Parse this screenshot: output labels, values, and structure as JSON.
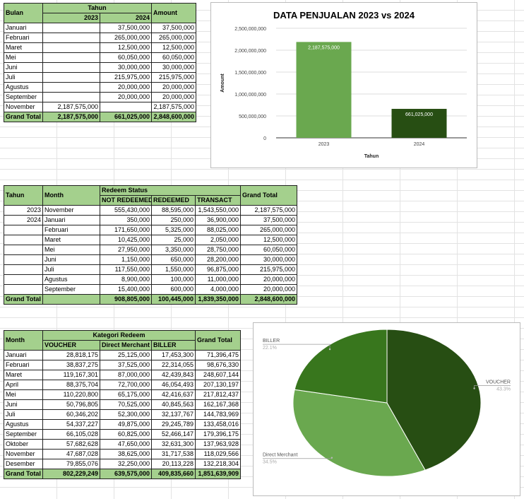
{
  "tables": [
    {
      "row_headers": [
        "Bulan"
      ],
      "group": "Tahun",
      "subheaders": [
        "2023",
        "2024"
      ],
      "total_header": "Amount",
      "rows": [
        [
          "Januari",
          null,
          "37,500,000",
          "37,500,000"
        ],
        [
          "Februari",
          null,
          "265,000,000",
          "265,000,000"
        ],
        [
          "Maret",
          null,
          "12,500,000",
          "12,500,000"
        ],
        [
          "Mei",
          null,
          "60,050,000",
          "60,050,000"
        ],
        [
          "Juni",
          null,
          "30,000,000",
          "30,000,000"
        ],
        [
          "Juli",
          null,
          "215,975,000",
          "215,975,000"
        ],
        [
          "Agustus",
          null,
          "20,000,000",
          "20,000,000"
        ],
        [
          "September",
          null,
          "20,000,000",
          "20,000,000"
        ],
        [
          "November",
          "2,187,575,000",
          null,
          "2,187,575,000"
        ],
        [
          "Grand Total",
          "2,187,575,000",
          "661,025,000",
          "2,848,600,000"
        ]
      ]
    },
    {
      "row_headers": [
        "Tahun",
        "Month"
      ],
      "group": "Redeem Status",
      "subheaders": [
        "NOT REDEEMED",
        "REDEEMED",
        "TRANSACT"
      ],
      "total_header": "Grand Total",
      "rows": [
        [
          "2023",
          "November",
          "555,430,000",
          "88,595,000",
          "1,543,550,000",
          "2,187,575,000"
        ],
        [
          "2024",
          "Januari",
          "350,000",
          "250,000",
          "36,900,000",
          "37,500,000"
        ],
        [
          null,
          "Februari",
          "171,650,000",
          "5,325,000",
          "88,025,000",
          "265,000,000"
        ],
        [
          null,
          "Maret",
          "10,425,000",
          "25,000",
          "2,050,000",
          "12,500,000"
        ],
        [
          null,
          "Mei",
          "27,950,000",
          "3,350,000",
          "28,750,000",
          "60,050,000"
        ],
        [
          null,
          "Juni",
          "1,150,000",
          "650,000",
          "28,200,000",
          "30,000,000"
        ],
        [
          null,
          "Juli",
          "117,550,000",
          "1,550,000",
          "96,875,000",
          "215,975,000"
        ],
        [
          null,
          "Agustus",
          "8,900,000",
          "100,000",
          "11,000,000",
          "20,000,000"
        ],
        [
          null,
          "September",
          "15,400,000",
          "600,000",
          "4,000,000",
          "20,000,000"
        ],
        [
          "Grand Total",
          null,
          "908,805,000",
          "100,445,000",
          "1,839,350,000",
          "2,848,600,000"
        ]
      ]
    },
    {
      "row_headers": [
        "Month"
      ],
      "group": "Kategori Redeem",
      "subheaders": [
        "VOUCHER",
        "Direct Merchant",
        "BILLER"
      ],
      "total_header": "Grand Total",
      "rows": [
        [
          "Januari",
          "28,818,175",
          "25,125,000",
          "17,453,300",
          "71,396,475"
        ],
        [
          "Februari",
          "38,837,275",
          "37,525,000",
          "22,314,055",
          "98,676,330"
        ],
        [
          "Maret",
          "119,167,301",
          "87,000,000",
          "42,439,843",
          "248,607,144"
        ],
        [
          "April",
          "88,375,704",
          "72,700,000",
          "46,054,493",
          "207,130,197"
        ],
        [
          "Mei",
          "110,220,800",
          "65,175,000",
          "42,416,637",
          "217,812,437"
        ],
        [
          "Juni",
          "50,796,805",
          "70,525,000",
          "40,845,563",
          "162,167,368"
        ],
        [
          "Juli",
          "60,346,202",
          "52,300,000",
          "32,137,767",
          "144,783,969"
        ],
        [
          "Agustus",
          "54,337,227",
          "49,875,000",
          "29,245,789",
          "133,458,016"
        ],
        [
          "September",
          "66,105,028",
          "60,825,000",
          "52,466,147",
          "179,396,175"
        ],
        [
          "Oktober",
          "57,682,628",
          "47,650,000",
          "32,631,300",
          "137,963,928"
        ],
        [
          "November",
          "47,687,028",
          "38,625,000",
          "31,717,538",
          "118,029,566"
        ],
        [
          "Desember",
          "79,855,076",
          "32,250,000",
          "20,113,228",
          "132,218,304"
        ],
        [
          "Grand Total",
          "802,229,249",
          "639,575,000",
          "409,835,660",
          "1,851,639,909"
        ]
      ]
    }
  ],
  "chart_data": [
    {
      "type": "bar",
      "title": "DATA PENJUALAN 2023 vs 2024",
      "x_label": "Tahun",
      "y_label": "Amount",
      "categories": [
        "2023",
        "2024"
      ],
      "values": [
        2187575000,
        661025000
      ],
      "value_labels": [
        "2,187,575,000",
        "661,025,000"
      ],
      "colors": [
        "#6aa84f",
        "#274e13"
      ],
      "ylim": [
        0,
        2500000000
      ],
      "yticks": [
        0,
        {
          "value": 500000000,
          "label": "500,000,000"
        },
        {
          "value": 1000000000,
          "label": "1,000,000,000"
        },
        {
          "value": 1500000000,
          "label": "1,500,000,000"
        },
        {
          "value": 2000000000,
          "label": "2,000,000,000"
        },
        {
          "value": 2500000000,
          "label": "2,500,000,000"
        }
      ],
      "grid": true
    },
    {
      "type": "pie",
      "categories": [
        "VOUCHER",
        "Direct Merchant",
        "BILLER"
      ],
      "values": [
        43.3,
        34.5,
        22.1
      ],
      "value_labels": [
        "43.3%",
        "34.5%",
        "22.1%"
      ],
      "colors": [
        "#274e13",
        "#6aa84f",
        "#38761d"
      ]
    }
  ]
}
